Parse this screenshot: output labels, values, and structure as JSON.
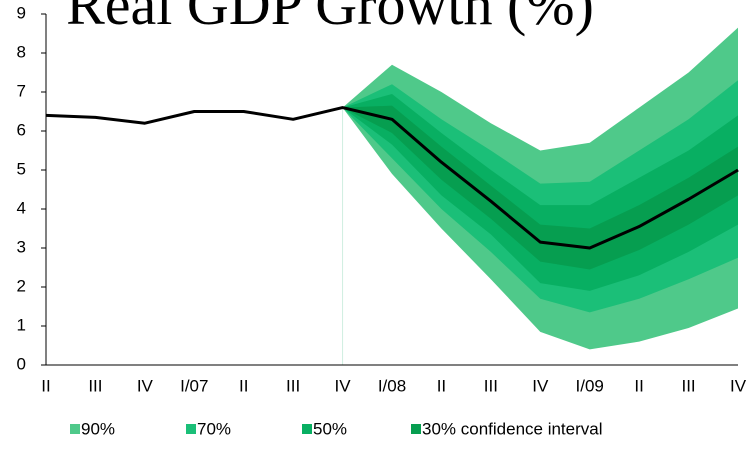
{
  "chart_data": {
    "type": "line",
    "title": "Real GDP Growth (%)",
    "categories": [
      "II",
      "III",
      "IV",
      "I/07",
      "II",
      "III",
      "IV",
      "I/08",
      "II",
      "III",
      "IV",
      "I/09",
      "II",
      "III",
      "IV"
    ],
    "values": [
      6.4,
      6.35,
      6.2,
      6.5,
      6.5,
      6.3,
      6.6,
      6.3,
      5.2,
      4.2,
      3.15,
      3.0,
      3.55,
      4.25,
      5.0
    ],
    "color": "#000000",
    "bands": [
      {
        "name": "90%",
        "color": "#4fc98a",
        "upper": [
          null,
          null,
          null,
          null,
          null,
          null,
          6.6,
          7.7,
          7.0,
          6.2,
          5.5,
          5.7,
          6.6,
          7.5,
          8.65
        ],
        "lower": [
          null,
          null,
          null,
          null,
          null,
          null,
          6.6,
          4.9,
          3.5,
          2.2,
          0.85,
          0.4,
          0.6,
          0.95,
          1.45
        ]
      },
      {
        "name": "70%",
        "color": "#1bbf78",
        "upper": [
          null,
          null,
          null,
          null,
          null,
          null,
          6.6,
          7.2,
          6.3,
          5.5,
          4.65,
          4.7,
          5.5,
          6.3,
          7.3
        ],
        "lower": [
          null,
          null,
          null,
          null,
          null,
          null,
          6.6,
          5.3,
          4.0,
          2.9,
          1.7,
          1.35,
          1.7,
          2.2,
          2.75
        ]
      },
      {
        "name": "50%",
        "color": "#08af62",
        "upper": [
          null,
          null,
          null,
          null,
          null,
          null,
          6.6,
          6.95,
          5.95,
          5.0,
          4.1,
          4.1,
          4.8,
          5.5,
          6.4
        ],
        "lower": [
          null,
          null,
          null,
          null,
          null,
          null,
          6.6,
          5.65,
          4.35,
          3.35,
          2.1,
          1.9,
          2.3,
          2.9,
          3.6
        ]
      },
      {
        "name": "30% confidence interval",
        "color": "#069e50",
        "upper": [
          null,
          null,
          null,
          null,
          null,
          null,
          6.6,
          6.65,
          5.6,
          4.6,
          3.6,
          3.5,
          4.1,
          4.8,
          5.6
        ],
        "lower": [
          null,
          null,
          null,
          null,
          null,
          null,
          6.6,
          5.95,
          4.75,
          3.75,
          2.65,
          2.45,
          2.95,
          3.6,
          4.35
        ]
      }
    ],
    "ylim": [
      0,
      9
    ],
    "yticks": [
      0,
      1,
      2,
      3,
      4,
      5,
      6,
      7,
      8,
      9
    ],
    "legend": "bottom"
  }
}
